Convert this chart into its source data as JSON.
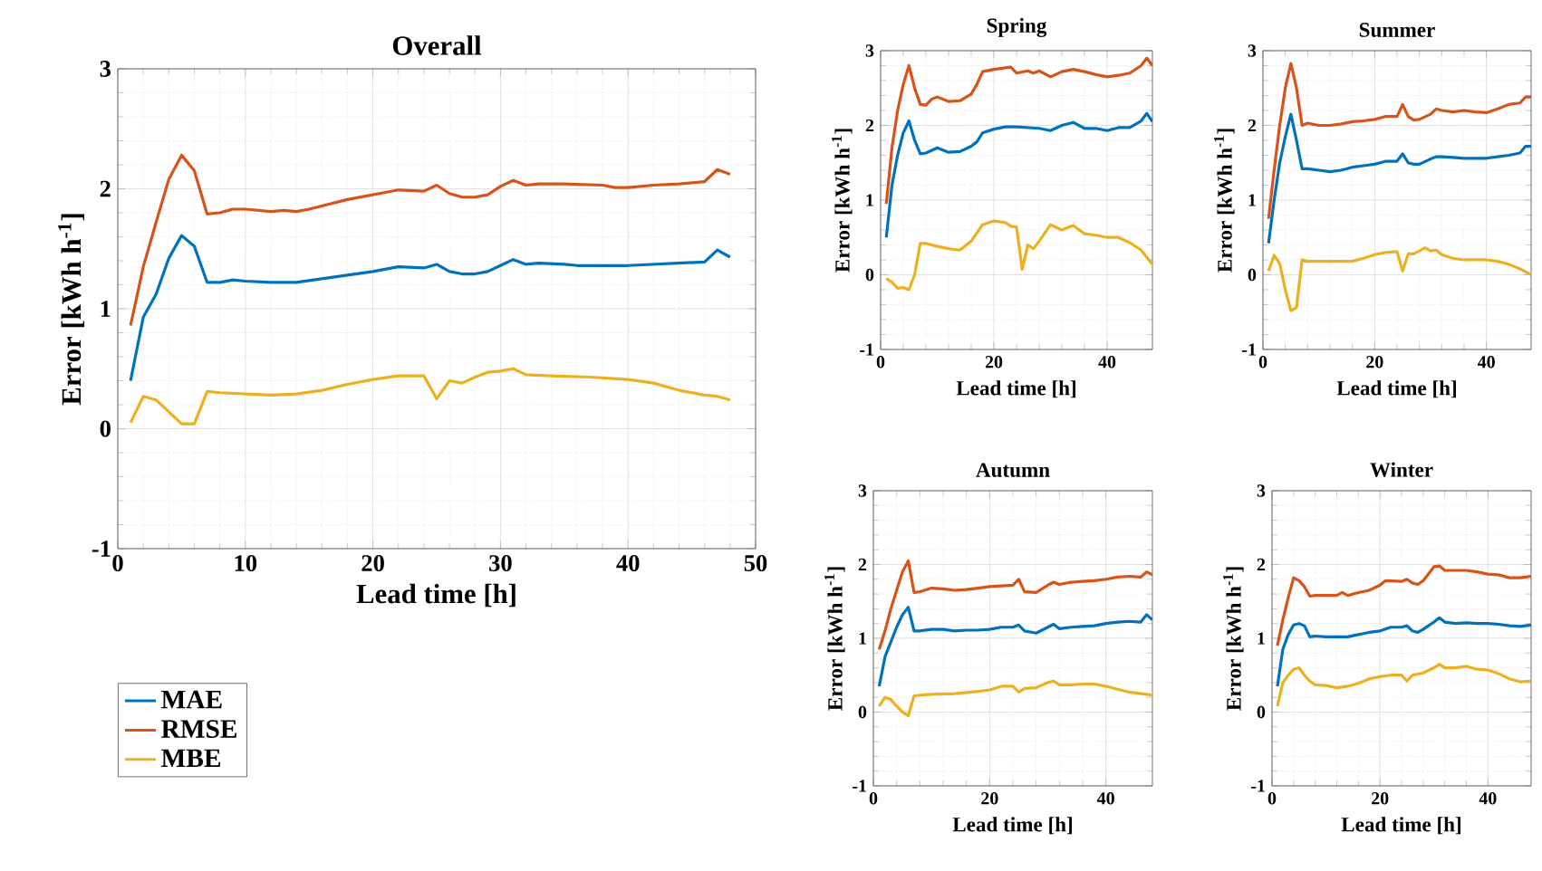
{
  "chart_data": [
    {
      "type": "line",
      "title": "Overall",
      "xlabel": "Lead time [h]",
      "ylabel": "Error [kWh h$^{-1}$]",
      "xlim": [
        0,
        50
      ],
      "xticks": [
        0,
        10,
        20,
        30,
        40,
        50
      ],
      "ylim": [
        -1,
        3
      ],
      "yticks": [
        -1,
        0,
        1,
        2,
        3
      ],
      "grid": true,
      "legend": "bottom left",
      "line_style": "solid",
      "series": [
        {
          "name": "MAE",
          "color": "#0072bd",
          "x": [
            1,
            2,
            3,
            4,
            5,
            6,
            7,
            8,
            9,
            10,
            12,
            14,
            16,
            18,
            20,
            22,
            24,
            25,
            26,
            27,
            28,
            29,
            30,
            31,
            32,
            33,
            35,
            36,
            40,
            46,
            47,
            48
          ],
          "values": [
            0.4,
            0.93,
            1.12,
            1.42,
            1.61,
            1.52,
            1.22,
            1.22,
            1.24,
            1.23,
            1.22,
            1.22,
            1.25,
            1.28,
            1.31,
            1.35,
            1.34,
            1.37,
            1.31,
            1.29,
            1.29,
            1.31,
            1.36,
            1.41,
            1.37,
            1.38,
            1.37,
            1.36,
            1.36,
            1.39,
            1.49,
            1.43
          ]
        },
        {
          "name": "RMSE",
          "color": "#d95319",
          "x": [
            1,
            2,
            3,
            4,
            5,
            6,
            7,
            8,
            9,
            10,
            12,
            13,
            14,
            15,
            18,
            20,
            22,
            24,
            25,
            26,
            27,
            28,
            29,
            30,
            31,
            32,
            33,
            35,
            38,
            39,
            40,
            42,
            44,
            46,
            47,
            48
          ],
          "values": [
            0.86,
            1.35,
            1.72,
            2.08,
            2.28,
            2.15,
            1.79,
            1.8,
            1.83,
            1.83,
            1.81,
            1.82,
            1.81,
            1.83,
            1.91,
            1.95,
            1.99,
            1.98,
            2.03,
            1.96,
            1.93,
            1.93,
            1.95,
            2.02,
            2.07,
            2.03,
            2.04,
            2.04,
            2.03,
            2.01,
            2.01,
            2.03,
            2.04,
            2.06,
            2.16,
            2.12
          ]
        },
        {
          "name": "MBE",
          "color": "#edb120",
          "x": [
            1,
            2,
            3,
            4,
            5,
            6,
            7,
            8,
            10,
            12,
            14,
            16,
            18,
            20,
            22,
            24,
            25,
            26,
            27,
            28,
            29,
            30,
            31,
            32,
            34,
            37,
            40,
            42,
            44,
            46,
            47,
            48
          ],
          "values": [
            0.05,
            0.27,
            0.24,
            0.14,
            0.04,
            0.04,
            0.31,
            0.3,
            0.29,
            0.28,
            0.29,
            0.32,
            0.37,
            0.41,
            0.44,
            0.44,
            0.25,
            0.4,
            0.38,
            0.43,
            0.47,
            0.48,
            0.5,
            0.45,
            0.44,
            0.43,
            0.41,
            0.38,
            0.32,
            0.28,
            0.27,
            0.24
          ]
        }
      ]
    },
    {
      "type": "line",
      "title": "Spring",
      "xlabel": "Lead time [h]",
      "ylabel": "Error [kWh h$^{-1}$]",
      "xlim": [
        0,
        48
      ],
      "xticks": [
        0,
        20,
        40
      ],
      "ylim": [
        -1,
        3
      ],
      "yticks": [
        -1,
        0,
        1,
        2,
        3
      ],
      "grid": true,
      "line_style": "solid",
      "series": [
        {
          "color": "#0072bd",
          "x": [
            1,
            2,
            3,
            4,
            5,
            6,
            7,
            8,
            10,
            12,
            14,
            16,
            17,
            18,
            20,
            22,
            24,
            26,
            28,
            30,
            32,
            34,
            36,
            38,
            40,
            42,
            44,
            46,
            47,
            48
          ],
          "values": [
            0.5,
            1.2,
            1.6,
            1.9,
            2.06,
            1.8,
            1.62,
            1.63,
            1.7,
            1.64,
            1.65,
            1.72,
            1.78,
            1.9,
            1.95,
            1.98,
            1.98,
            1.97,
            1.96,
            1.93,
            2.0,
            2.04,
            1.96,
            1.96,
            1.93,
            1.97,
            1.97,
            2.06,
            2.16,
            2.05
          ]
        },
        {
          "color": "#d95319",
          "x": [
            1,
            2,
            3,
            4,
            5,
            6,
            7,
            8,
            9,
            10,
            12,
            14,
            16,
            17,
            18,
            20,
            22,
            23,
            24,
            26,
            27,
            28,
            30,
            32,
            34,
            36,
            38,
            40,
            42,
            44,
            46,
            47,
            48
          ],
          "values": [
            0.95,
            1.7,
            2.2,
            2.55,
            2.8,
            2.5,
            2.28,
            2.27,
            2.35,
            2.38,
            2.32,
            2.33,
            2.42,
            2.55,
            2.72,
            2.75,
            2.77,
            2.78,
            2.7,
            2.73,
            2.7,
            2.73,
            2.65,
            2.72,
            2.75,
            2.72,
            2.68,
            2.65,
            2.67,
            2.7,
            2.8,
            2.9,
            2.8
          ]
        },
        {
          "color": "#edb120",
          "x": [
            1,
            2,
            3,
            4,
            5,
            6,
            7,
            8,
            10,
            12,
            14,
            16,
            18,
            20,
            22,
            23,
            24,
            25,
            26,
            27,
            28,
            30,
            32,
            34,
            36,
            38,
            40,
            42,
            44,
            46,
            48
          ],
          "values": [
            -0.05,
            -0.1,
            -0.18,
            -0.17,
            -0.2,
            0.0,
            0.42,
            0.42,
            0.38,
            0.35,
            0.33,
            0.45,
            0.67,
            0.72,
            0.7,
            0.65,
            0.64,
            0.07,
            0.4,
            0.35,
            0.45,
            0.67,
            0.6,
            0.66,
            0.55,
            0.53,
            0.5,
            0.5,
            0.43,
            0.33,
            0.14
          ]
        }
      ]
    },
    {
      "type": "line",
      "title": "Summer",
      "xlabel": "Lead time [h]",
      "ylabel": "Error [kWh h$^{-1}$]",
      "xlim": [
        0,
        48
      ],
      "xticks": [
        0,
        20,
        40
      ],
      "ylim": [
        -1,
        3
      ],
      "yticks": [
        -1,
        0,
        1,
        2,
        3
      ],
      "grid": true,
      "line_style": "solid",
      "series": [
        {
          "color": "#0072bd",
          "x": [
            1,
            2,
            3,
            4,
            5,
            6,
            7,
            8,
            10,
            12,
            14,
            16,
            18,
            20,
            22,
            24,
            25,
            26,
            27,
            28,
            30,
            31,
            32,
            34,
            36,
            38,
            40,
            42,
            44,
            46,
            47,
            48
          ],
          "values": [
            0.42,
            1.0,
            1.5,
            1.85,
            2.15,
            1.8,
            1.42,
            1.42,
            1.4,
            1.38,
            1.4,
            1.44,
            1.46,
            1.48,
            1.52,
            1.52,
            1.62,
            1.5,
            1.48,
            1.48,
            1.55,
            1.58,
            1.58,
            1.57,
            1.56,
            1.56,
            1.56,
            1.58,
            1.6,
            1.63,
            1.72,
            1.72
          ]
        },
        {
          "color": "#d95319",
          "x": [
            1,
            2,
            3,
            4,
            5,
            6,
            7,
            8,
            10,
            12,
            14,
            16,
            18,
            20,
            22,
            24,
            25,
            26,
            27,
            28,
            30,
            31,
            32,
            34,
            36,
            38,
            40,
            42,
            44,
            46,
            47,
            48
          ],
          "values": [
            0.75,
            1.4,
            2.0,
            2.5,
            2.83,
            2.5,
            2.0,
            2.03,
            2.0,
            2.0,
            2.02,
            2.05,
            2.06,
            2.08,
            2.12,
            2.12,
            2.28,
            2.12,
            2.07,
            2.08,
            2.15,
            2.22,
            2.2,
            2.18,
            2.2,
            2.18,
            2.17,
            2.22,
            2.28,
            2.3,
            2.38,
            2.38
          ]
        },
        {
          "color": "#edb120",
          "x": [
            1,
            2,
            3,
            4,
            5,
            6,
            7,
            8,
            10,
            12,
            14,
            16,
            18,
            20,
            22,
            24,
            25,
            26,
            27,
            28,
            29,
            30,
            31,
            32,
            34,
            36,
            38,
            40,
            42,
            44,
            46,
            48
          ],
          "values": [
            0.05,
            0.26,
            0.15,
            -0.2,
            -0.48,
            -0.44,
            0.2,
            0.18,
            0.18,
            0.18,
            0.18,
            0.18,
            0.22,
            0.27,
            0.3,
            0.31,
            0.05,
            0.28,
            0.28,
            0.32,
            0.36,
            0.32,
            0.33,
            0.27,
            0.22,
            0.2,
            0.2,
            0.2,
            0.18,
            0.14,
            0.08,
            0.0
          ]
        }
      ]
    },
    {
      "type": "line",
      "title": "Autumn",
      "xlabel": "Lead time [h]",
      "ylabel": "Error [kWh h$^{-1}$]",
      "xlim": [
        0,
        48
      ],
      "xticks": [
        0,
        20,
        40
      ],
      "ylim": [
        -1,
        3
      ],
      "yticks": [
        -1,
        0,
        1,
        2,
        3
      ],
      "grid": true,
      "line_style": "solid",
      "series": [
        {
          "color": "#0072bd",
          "x": [
            1,
            2,
            3,
            4,
            5,
            6,
            7,
            8,
            10,
            12,
            14,
            16,
            18,
            20,
            22,
            24,
            25,
            26,
            28,
            30,
            31,
            32,
            34,
            36,
            38,
            40,
            42,
            44,
            46,
            47,
            48
          ],
          "values": [
            0.35,
            0.75,
            0.95,
            1.15,
            1.32,
            1.42,
            1.1,
            1.1,
            1.12,
            1.12,
            1.1,
            1.11,
            1.11,
            1.12,
            1.15,
            1.15,
            1.18,
            1.1,
            1.07,
            1.15,
            1.19,
            1.13,
            1.15,
            1.16,
            1.17,
            1.2,
            1.22,
            1.23,
            1.22,
            1.32,
            1.25
          ]
        },
        {
          "color": "#d95319",
          "x": [
            1,
            2,
            3,
            4,
            5,
            6,
            7,
            8,
            10,
            12,
            14,
            16,
            18,
            20,
            22,
            24,
            25,
            26,
            28,
            30,
            31,
            32,
            34,
            36,
            38,
            40,
            42,
            44,
            46,
            47,
            48
          ],
          "values": [
            0.85,
            1.1,
            1.4,
            1.65,
            1.9,
            2.05,
            1.62,
            1.63,
            1.68,
            1.67,
            1.65,
            1.66,
            1.68,
            1.7,
            1.71,
            1.72,
            1.8,
            1.63,
            1.62,
            1.72,
            1.76,
            1.73,
            1.76,
            1.77,
            1.78,
            1.8,
            1.83,
            1.84,
            1.83,
            1.9,
            1.86
          ]
        },
        {
          "color": "#edb120",
          "x": [
            1,
            2,
            3,
            4,
            5,
            6,
            7,
            8,
            10,
            14,
            18,
            20,
            22,
            24,
            25,
            26,
            28,
            30,
            31,
            32,
            34,
            36,
            38,
            40,
            42,
            44,
            46,
            48
          ],
          "values": [
            0.08,
            0.2,
            0.17,
            0.08,
            0.0,
            -0.05,
            0.22,
            0.23,
            0.24,
            0.25,
            0.28,
            0.3,
            0.35,
            0.35,
            0.27,
            0.32,
            0.33,
            0.4,
            0.42,
            0.37,
            0.37,
            0.38,
            0.38,
            0.35,
            0.31,
            0.27,
            0.25,
            0.23
          ]
        }
      ]
    },
    {
      "type": "line",
      "title": "Winter",
      "xlabel": "Lead time [h]",
      "ylabel": "Error [kWh h$^{-1}$]",
      "xlim": [
        0,
        48
      ],
      "xticks": [
        0,
        20,
        40
      ],
      "ylim": [
        -1,
        3
      ],
      "yticks": [
        -1,
        0,
        1,
        2,
        3
      ],
      "grid": true,
      "line_style": "solid",
      "series": [
        {
          "color": "#0072bd",
          "x": [
            1,
            2,
            3,
            4,
            5,
            6,
            7,
            8,
            10,
            12,
            14,
            16,
            18,
            20,
            22,
            24,
            25,
            26,
            27,
            28,
            30,
            31,
            32,
            34,
            36,
            38,
            40,
            42,
            44,
            46,
            48
          ],
          "values": [
            0.35,
            0.85,
            1.05,
            1.18,
            1.2,
            1.17,
            1.02,
            1.03,
            1.02,
            1.02,
            1.02,
            1.05,
            1.08,
            1.1,
            1.15,
            1.15,
            1.17,
            1.1,
            1.08,
            1.12,
            1.22,
            1.28,
            1.22,
            1.2,
            1.21,
            1.2,
            1.2,
            1.19,
            1.17,
            1.16,
            1.18
          ]
        },
        {
          "color": "#d95319",
          "x": [
            1,
            2,
            3,
            4,
            5,
            6,
            7,
            8,
            10,
            12,
            13,
            14,
            16,
            18,
            20,
            21,
            24,
            25,
            26,
            27,
            28,
            30,
            31,
            32,
            34,
            36,
            38,
            40,
            42,
            44,
            46,
            48
          ],
          "values": [
            0.9,
            1.25,
            1.55,
            1.82,
            1.78,
            1.7,
            1.57,
            1.58,
            1.58,
            1.58,
            1.62,
            1.58,
            1.62,
            1.65,
            1.72,
            1.78,
            1.77,
            1.8,
            1.75,
            1.73,
            1.78,
            1.97,
            1.98,
            1.92,
            1.92,
            1.92,
            1.9,
            1.87,
            1.86,
            1.82,
            1.82,
            1.84
          ]
        },
        {
          "color": "#edb120",
          "x": [
            1,
            2,
            3,
            4,
            5,
            6,
            7,
            8,
            10,
            12,
            14,
            16,
            18,
            20,
            22,
            24,
            25,
            26,
            28,
            30,
            31,
            32,
            34,
            36,
            38,
            40,
            42,
            44,
            46,
            48
          ],
          "values": [
            0.08,
            0.4,
            0.5,
            0.58,
            0.6,
            0.5,
            0.42,
            0.37,
            0.36,
            0.33,
            0.35,
            0.39,
            0.45,
            0.48,
            0.5,
            0.5,
            0.42,
            0.5,
            0.53,
            0.6,
            0.65,
            0.6,
            0.6,
            0.62,
            0.58,
            0.57,
            0.52,
            0.45,
            0.41,
            0.42
          ]
        }
      ]
    }
  ]
}
